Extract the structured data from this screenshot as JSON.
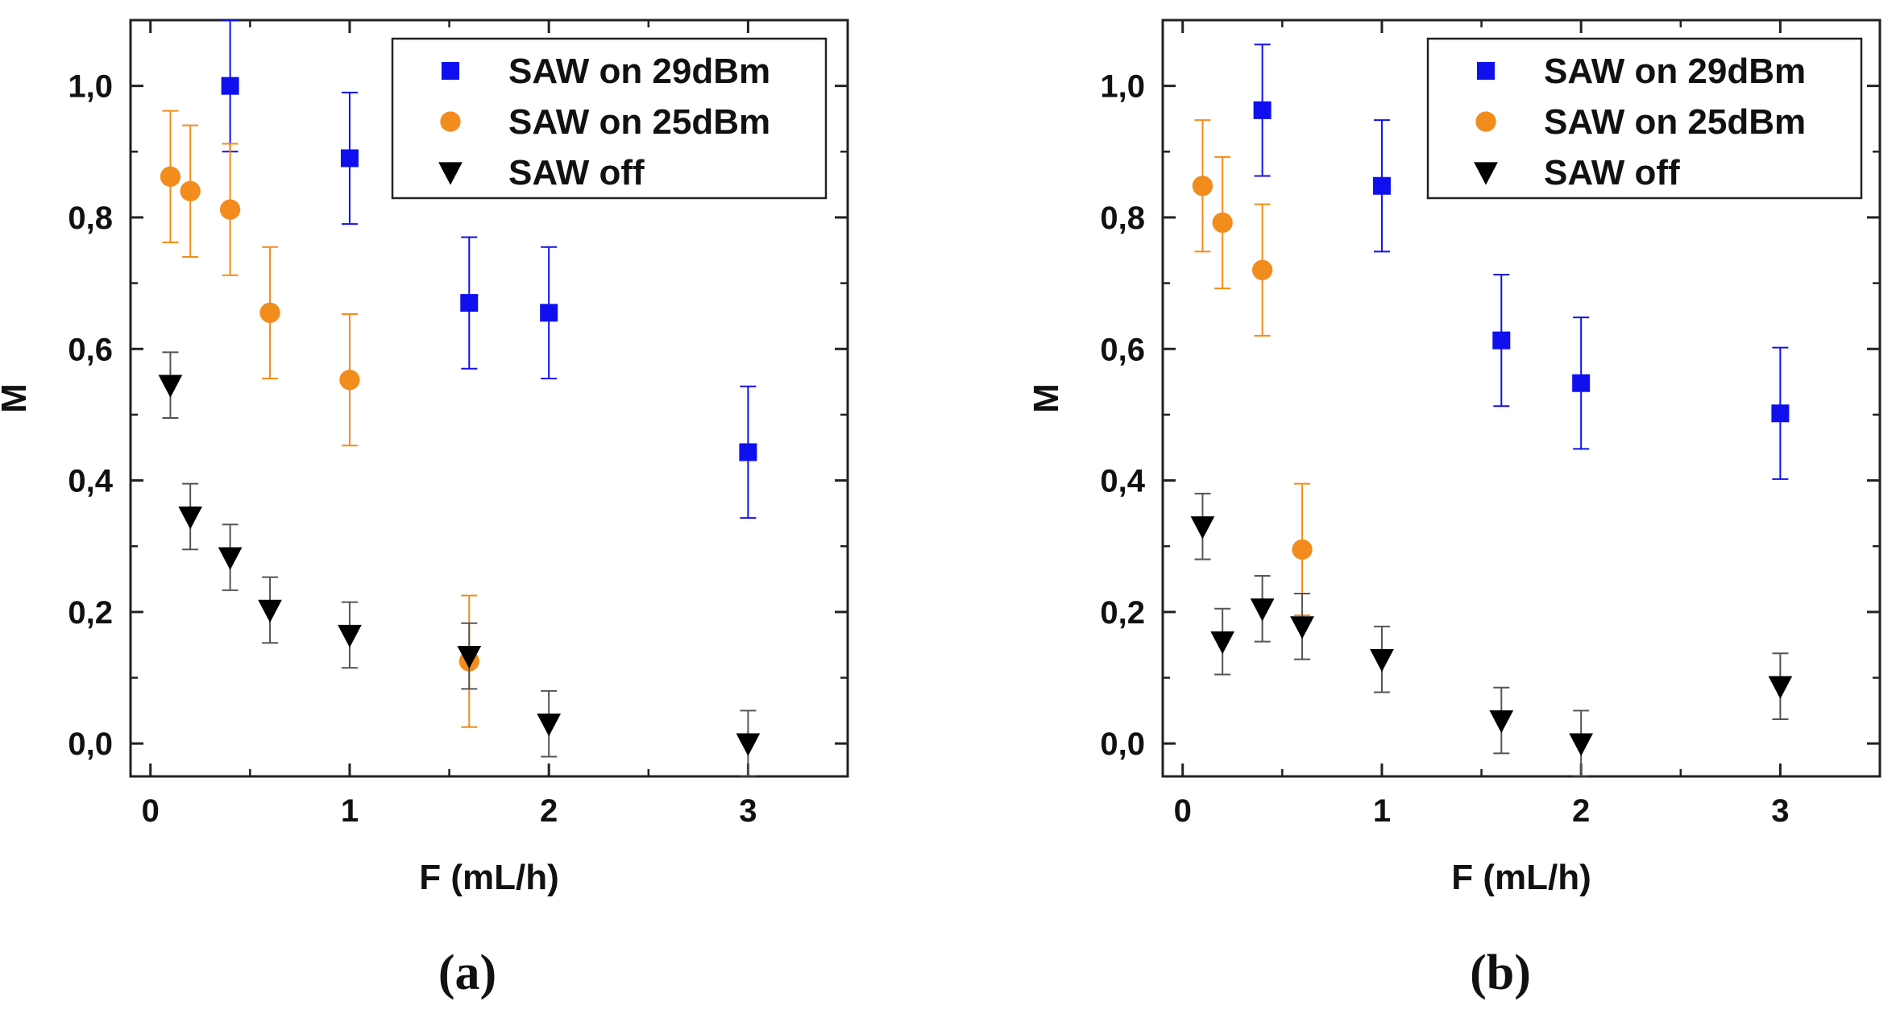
{
  "figure": {
    "panel_labels": [
      "(a)",
      "(b)"
    ]
  },
  "chart_data": [
    {
      "type": "scatter",
      "panel": "(a)",
      "xlabel": "F (mL/h)",
      "ylabel": "M",
      "xlim": [
        -0.1,
        3.5
      ],
      "ylim": [
        -0.05,
        1.1
      ],
      "xticks": [
        0,
        1,
        2,
        3
      ],
      "xtick_labels": [
        "0",
        "1",
        "2",
        "3"
      ],
      "yticks": [
        0.0,
        0.2,
        0.4,
        0.6,
        0.8,
        1.0
      ],
      "ytick_labels": [
        "0,0",
        "0,2",
        "0,4",
        "0,6",
        "0,8",
        "1,0"
      ],
      "legend_position": "top-right",
      "series": [
        {
          "name": "SAW on 29dBm",
          "marker": "square",
          "color": "#1010ee",
          "x": [
            0.4,
            1.0,
            1.6,
            2.0,
            3.0
          ],
          "y": [
            1.0,
            0.89,
            0.67,
            0.655,
            0.443
          ],
          "err": [
            0.1,
            0.1,
            0.1,
            0.1,
            0.1
          ]
        },
        {
          "name": "SAW on 25dBm",
          "marker": "circle",
          "color": "#f28c1c",
          "x": [
            0.1,
            0.2,
            0.4,
            0.6,
            1.0,
            1.6
          ],
          "y": [
            0.862,
            0.84,
            0.812,
            0.655,
            0.553,
            0.125
          ],
          "err": [
            0.1,
            0.1,
            0.1,
            0.1,
            0.1,
            0.1
          ]
        },
        {
          "name": "SAW off",
          "marker": "triangle-down",
          "color": "#000000",
          "x": [
            0.1,
            0.2,
            0.4,
            0.6,
            1.0,
            1.6,
            2.0,
            3.0
          ],
          "y": [
            0.545,
            0.345,
            0.283,
            0.203,
            0.165,
            0.133,
            0.03,
            0.0
          ],
          "err": [
            0.05,
            0.05,
            0.05,
            0.05,
            0.05,
            0.05,
            0.05,
            0.05
          ]
        }
      ]
    },
    {
      "type": "scatter",
      "panel": "(b)",
      "xlabel": "F (mL/h)",
      "ylabel": "M",
      "xlim": [
        -0.1,
        3.5
      ],
      "ylim": [
        -0.05,
        1.1
      ],
      "xticks": [
        0,
        1,
        2,
        3
      ],
      "xtick_labels": [
        "0",
        "1",
        "2",
        "3"
      ],
      "yticks": [
        0.0,
        0.2,
        0.4,
        0.6,
        0.8,
        1.0
      ],
      "ytick_labels": [
        "0,0",
        "0,2",
        "0,4",
        "0,6",
        "0,8",
        "1,0"
      ],
      "legend_position": "top-right",
      "series": [
        {
          "name": "SAW on 29dBm",
          "marker": "square",
          "color": "#1010ee",
          "x": [
            0.4,
            1.0,
            1.6,
            2.0,
            3.0
          ],
          "y": [
            0.963,
            0.848,
            0.613,
            0.548,
            0.502
          ],
          "err": [
            0.1,
            0.1,
            0.1,
            0.1,
            0.1
          ]
        },
        {
          "name": "SAW on 25dBm",
          "marker": "circle",
          "color": "#f28c1c",
          "x": [
            0.1,
            0.2,
            0.4,
            0.6
          ],
          "y": [
            0.848,
            0.792,
            0.72,
            0.295
          ],
          "err": [
            0.1,
            0.1,
            0.1,
            0.1
          ]
        },
        {
          "name": "SAW off",
          "marker": "triangle-down",
          "color": "#000000",
          "x": [
            0.1,
            0.2,
            0.4,
            0.6,
            1.0,
            1.6,
            2.0,
            3.0
          ],
          "y": [
            0.33,
            0.155,
            0.205,
            0.178,
            0.128,
            0.035,
            0.0,
            0.087
          ],
          "err": [
            0.05,
            0.05,
            0.05,
            0.05,
            0.05,
            0.05,
            0.05,
            0.05
          ]
        }
      ]
    }
  ]
}
